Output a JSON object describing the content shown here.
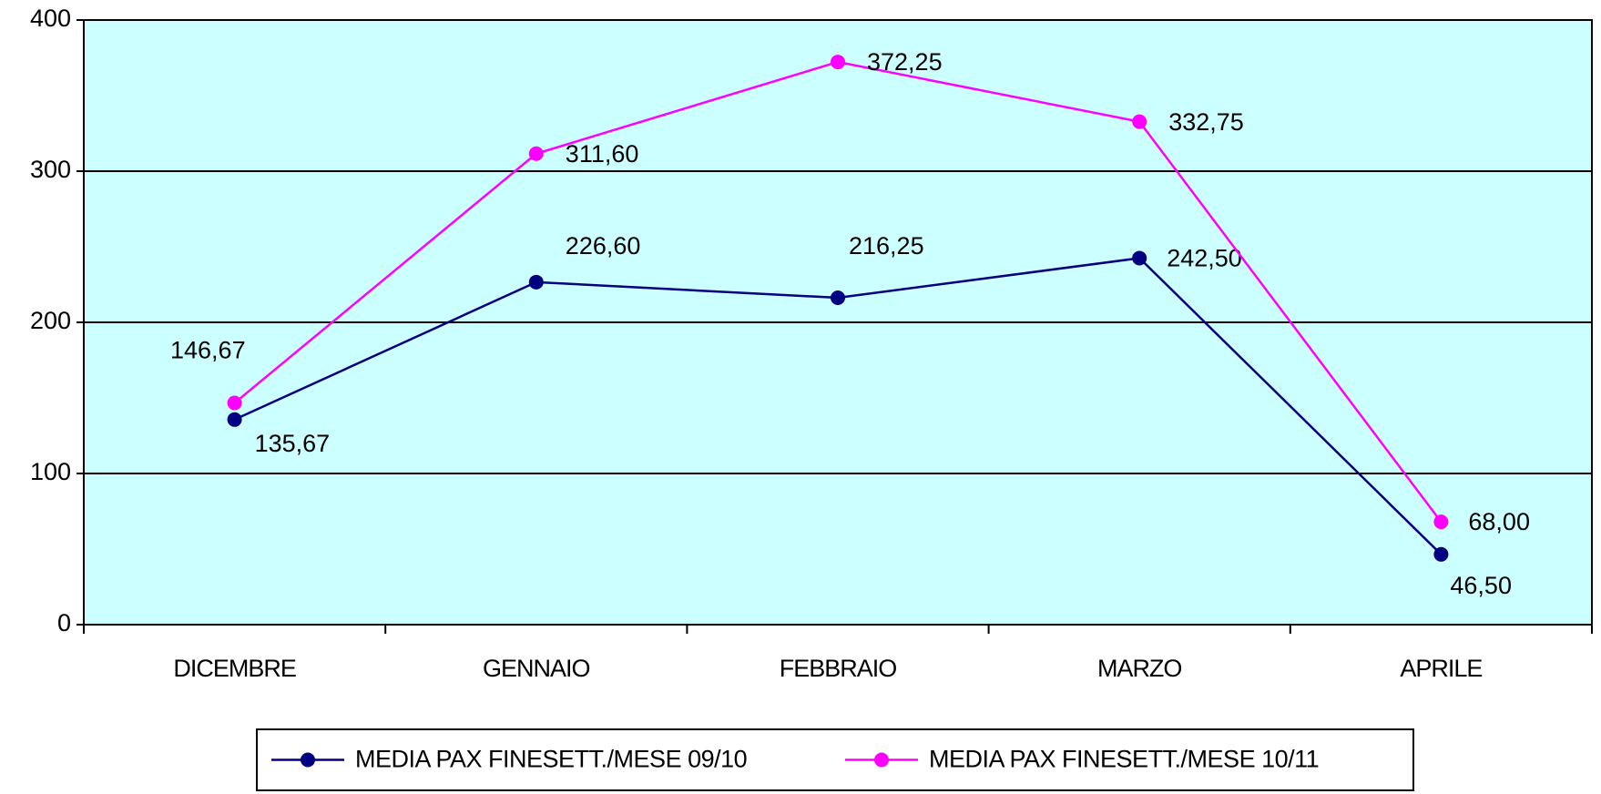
{
  "chart_data": {
    "type": "line",
    "categories": [
      "DICEMBRE",
      "GENNAIO",
      "FEBBRAIO",
      "MARZO",
      "APRILE"
    ],
    "series": [
      {
        "name": "MEDIA PAX FINESETT./MESE 09/10",
        "color": "#000080",
        "values": [
          135.67,
          226.6,
          216.25,
          242.5,
          46.5
        ],
        "value_labels": [
          "135,67",
          "226,60",
          "216,25",
          "242,50",
          "46,50"
        ]
      },
      {
        "name": "MEDIA PAX FINESETT./MESE 10/11",
        "color": "#ff00ff",
        "values": [
          146.67,
          311.6,
          372.25,
          332.75,
          68
        ],
        "value_labels": [
          "146,67",
          "311,60",
          "372,25",
          "332,75",
          "68,00"
        ]
      }
    ],
    "ylim": [
      0,
      400
    ],
    "yticks": [
      0,
      100,
      200,
      300,
      400
    ],
    "grid": true,
    "plot_background": "#ccffff",
    "legend": "bottom"
  }
}
